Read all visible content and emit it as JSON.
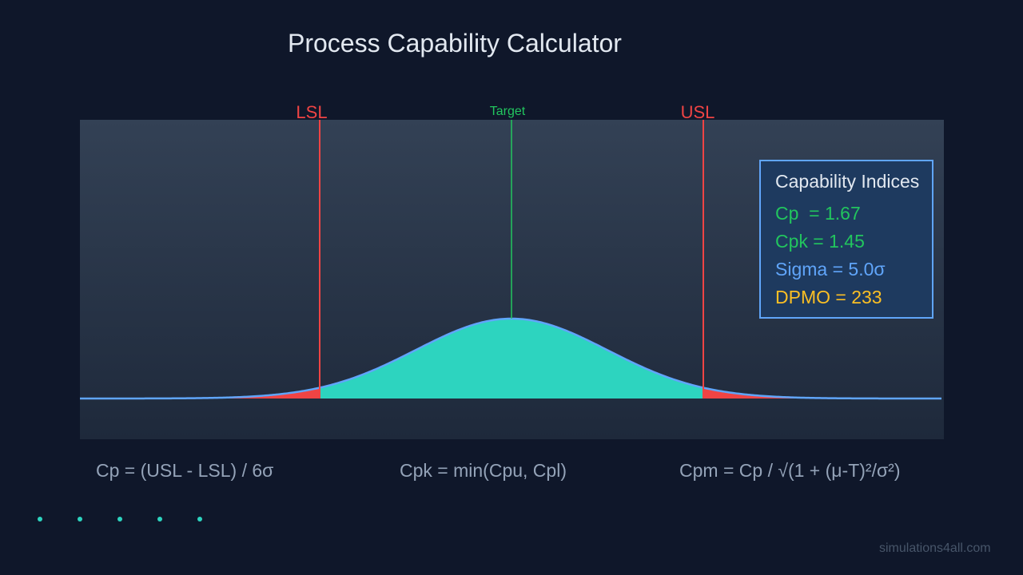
{
  "title": "Process Capability Calculator",
  "markers": {
    "lsl_label": "LSL",
    "target_label": "Target",
    "usl_label": "USL"
  },
  "indices_panel": {
    "title": "Capability Indices",
    "cp": "Cp  = 1.67",
    "cpk": "Cpk = 1.45",
    "sigma": "Sigma = 5.0σ",
    "dpmo": "DPMO = 233"
  },
  "formulas": {
    "cp": "Cp = (USL - LSL) / 6σ",
    "cpk": "Cpk = min(Cpu, Cpl)",
    "cpm": "Cpm = Cp / √(1 + (μ-T)²/σ²)"
  },
  "watermark": "simulations4all.com",
  "indicator_dots": 5,
  "colors": {
    "background": "#0f172a",
    "in_spec_fill": "#2dd4bf",
    "out_of_spec_fill": "#ef4444",
    "curve_line": "#60a5fa",
    "spec_limit": "#ef4444",
    "target": "#22c55e",
    "panel_bg": "#1e3a5f",
    "panel_border": "#60a5fa"
  },
  "distribution": {
    "type": "normal",
    "lsl_sd": -2.0,
    "usl_sd": 2.0,
    "target_sd": 0,
    "mean_sd": 0
  }
}
